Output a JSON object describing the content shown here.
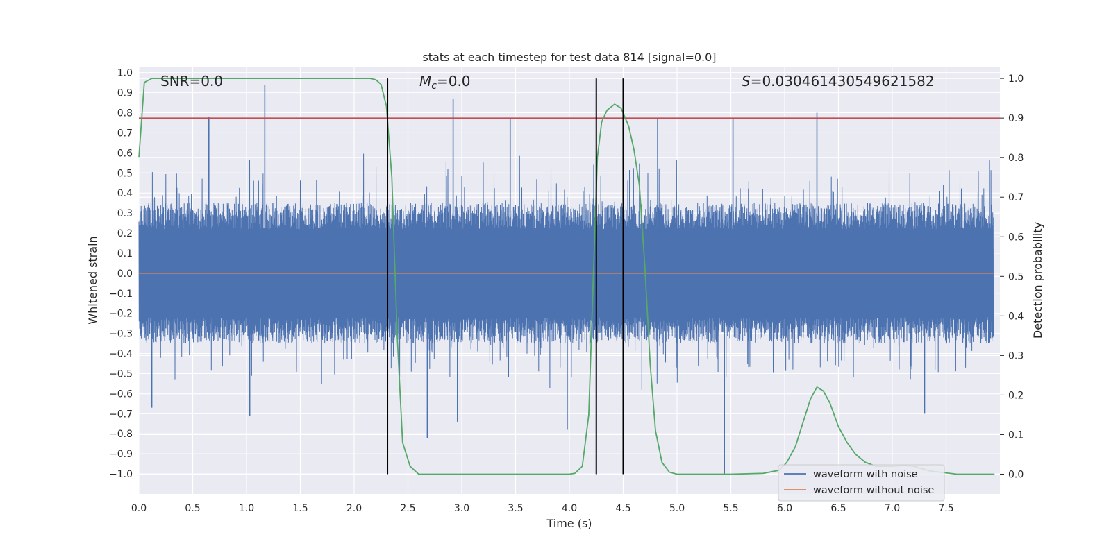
{
  "chart_data": {
    "type": "line",
    "title": "stats at each timestep for test data 814 [signal=0.0]",
    "xlabel": "Time (s)",
    "ylabel": "Whitened strain",
    "y2label": "Detection probability",
    "xlim": [
      0.0,
      8.0
    ],
    "ylim": [
      -1.1,
      1.03
    ],
    "y2lim": [
      -0.05,
      1.03
    ],
    "xticks": [
      "0.0",
      "0.5",
      "1.0",
      "1.5",
      "2.0",
      "2.5",
      "3.0",
      "3.5",
      "4.0",
      "4.5",
      "5.0",
      "5.5",
      "6.0",
      "6.5",
      "7.0",
      "7.5"
    ],
    "yticks": [
      "1.0",
      "0.9",
      "0.8",
      "0.7",
      "0.6",
      "0.5",
      "0.4",
      "0.3",
      "0.2",
      "0.1",
      "0.0",
      "−0.1",
      "−0.2",
      "−0.3",
      "−0.4",
      "−0.5",
      "−0.6",
      "−0.7",
      "−0.8",
      "−0.9",
      "−1.0"
    ],
    "y2ticks": [
      "1.0",
      "0.9",
      "0.8",
      "0.7",
      "0.6",
      "0.5",
      "0.4",
      "0.3",
      "0.2",
      "0.1",
      "0.0"
    ],
    "annotations": {
      "snr": "SNR=0.0",
      "mc_symbol": "M",
      "mc_sub": "c",
      "mc_value": "=0.0",
      "s_symbol": "S",
      "s_value": "=0.030461430549621582"
    },
    "legend": {
      "placement": "lower-right",
      "entries": [
        {
          "label": "waveform with noise",
          "color": "#4c72b0"
        },
        {
          "label": "waveform without noise",
          "color": "#dd8452"
        }
      ]
    },
    "series": [
      {
        "name": "waveform with noise",
        "axis": "left",
        "color": "#4c72b0",
        "envelope": {
          "sample_rate": 240,
          "bulk_abs": 0.35,
          "spike_max": 0.94,
          "spike_min": -1.0,
          "seed": 814
        }
      },
      {
        "name": "waveform without noise",
        "axis": "left",
        "color": "#dd8452",
        "x": [
          0.0,
          8.0
        ],
        "values": [
          0.0,
          0.0
        ]
      },
      {
        "name": "detection probability",
        "axis": "right",
        "color": "#55a868",
        "x": [
          0.0,
          0.05,
          0.12,
          0.3,
          0.6,
          1.0,
          1.5,
          2.0,
          2.15,
          2.2,
          2.25,
          2.3,
          2.35,
          2.4,
          2.45,
          2.52,
          2.6,
          3.0,
          3.5,
          4.0,
          4.05,
          4.12,
          4.18,
          4.22,
          4.26,
          4.3,
          4.35,
          4.42,
          4.48,
          4.55,
          4.6,
          4.65,
          4.7,
          4.75,
          4.8,
          4.86,
          4.93,
          5.0,
          5.5,
          5.8,
          5.95,
          6.02,
          6.1,
          6.17,
          6.24,
          6.3,
          6.36,
          6.42,
          6.5,
          6.58,
          6.66,
          6.75,
          6.85,
          7.0,
          7.1,
          7.2,
          7.35,
          7.6,
          7.95
        ],
        "values": [
          0.8,
          0.99,
          1.0,
          1.0,
          1.0,
          1.0,
          1.0,
          1.0,
          1.0,
          0.997,
          0.985,
          0.93,
          0.75,
          0.35,
          0.08,
          0.02,
          0.0,
          0.0,
          0.0,
          0.0,
          0.002,
          0.02,
          0.15,
          0.48,
          0.8,
          0.89,
          0.92,
          0.935,
          0.925,
          0.88,
          0.82,
          0.73,
          0.53,
          0.28,
          0.11,
          0.03,
          0.005,
          0.0,
          0.0,
          0.002,
          0.01,
          0.03,
          0.07,
          0.13,
          0.19,
          0.22,
          0.21,
          0.18,
          0.12,
          0.08,
          0.05,
          0.03,
          0.02,
          0.02,
          0.022,
          0.02,
          0.008,
          0.0,
          0.0
        ]
      }
    ],
    "threshold": {
      "axis": "right",
      "value": 0.9,
      "color": "#c44e52"
    },
    "markers_x": [
      2.31,
      4.25,
      4.5
    ],
    "marker_color": "#000000",
    "background": "#eaeaf2",
    "grid": true
  }
}
